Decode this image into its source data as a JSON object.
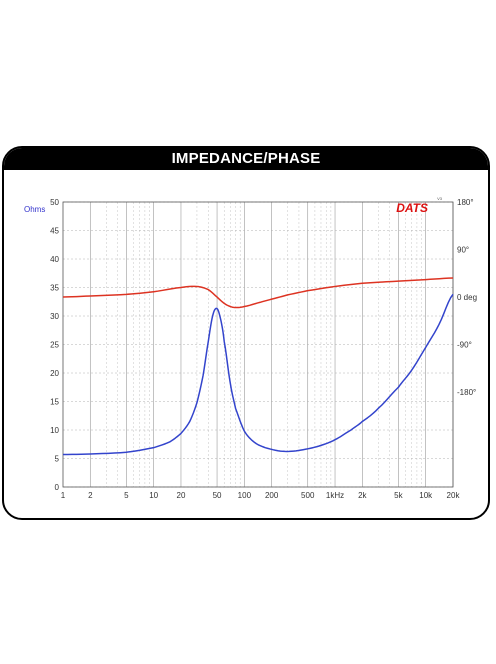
{
  "chart_data": {
    "type": "line",
    "title": "IMPEDANCE/PHASE",
    "logo_text": "DATS",
    "logo_superscript": "V3",
    "x_scale": "log",
    "xlim": [
      1,
      20000
    ],
    "x_ticks": [
      {
        "value": 1,
        "label": "1"
      },
      {
        "value": 2,
        "label": "2"
      },
      {
        "value": 5,
        "label": "5"
      },
      {
        "value": 10,
        "label": "10"
      },
      {
        "value": 20,
        "label": "20"
      },
      {
        "value": 50,
        "label": "50"
      },
      {
        "value": 100,
        "label": "100"
      },
      {
        "value": 200,
        "label": "200"
      },
      {
        "value": 500,
        "label": "500"
      },
      {
        "value": 1000,
        "label": "1kHz"
      },
      {
        "value": 2000,
        "label": "2k"
      },
      {
        "value": 5000,
        "label": "5k"
      },
      {
        "value": 10000,
        "label": "10k"
      },
      {
        "value": 20000,
        "label": "20k"
      }
    ],
    "y_left": {
      "unit": "Ohms",
      "ylim": [
        0,
        50
      ],
      "ticks": [
        "0",
        "5",
        "10",
        "15",
        "20",
        "25",
        "30",
        "35",
        "40",
        "45",
        "50"
      ],
      "color": "#3333cc"
    },
    "y_right": {
      "unit": "0 deg",
      "ylim": [
        -360,
        180
      ],
      "ticks": [
        {
          "value": 180,
          "label": "180°"
        },
        {
          "value": 90,
          "label": "90°"
        },
        {
          "value": 0,
          "label": "0 deg"
        },
        {
          "value": -90,
          "label": "-90°"
        },
        {
          "value": -180,
          "label": "-180°"
        }
      ],
      "color": "#cc3322"
    },
    "grid": true,
    "series": [
      {
        "axis": "left",
        "color": "#3344cc",
        "x": [
          1,
          2,
          5,
          10,
          15,
          20,
          25,
          30,
          35,
          40,
          45,
          50,
          55,
          60,
          70,
          80,
          100,
          130,
          170,
          250,
          350,
          500,
          700,
          1000,
          1500,
          2000,
          3000,
          5000,
          7000,
          10000,
          14000,
          20000
        ],
        "y": [
          5.7,
          5.8,
          6.1,
          6.9,
          7.9,
          9.4,
          11.5,
          14.8,
          19.5,
          25.5,
          30.2,
          31.3,
          29.3,
          25.5,
          18.2,
          13.8,
          9.8,
          7.8,
          6.9,
          6.3,
          6.3,
          6.7,
          7.3,
          8.3,
          10.0,
          11.5,
          13.8,
          17.5,
          20.5,
          24.5,
          28.5,
          33.8
        ]
      },
      {
        "axis": "right",
        "color": "#dd3322",
        "x": [
          1,
          2,
          5,
          10,
          20,
          30,
          40,
          50,
          60,
          70,
          80,
          100,
          150,
          200,
          300,
          500,
          1000,
          2000,
          5000,
          10000,
          20000
        ],
        "y": [
          0,
          2,
          5,
          10,
          18,
          20,
          14,
          0,
          -12,
          -18,
          -20,
          -18,
          -10,
          -4,
          4,
          12,
          20,
          26,
          30,
          33,
          36
        ]
      }
    ]
  }
}
